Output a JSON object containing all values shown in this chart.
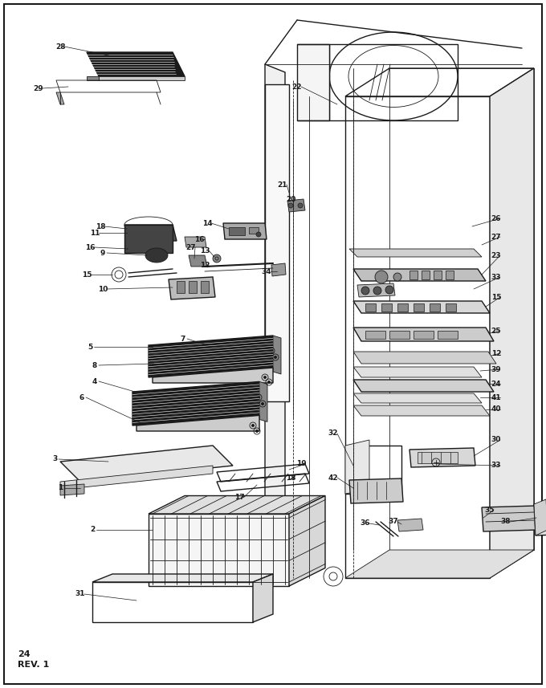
{
  "page_number": "24",
  "revision": "REV. 1",
  "bg_color": "#ffffff",
  "line_color": "#1a1a1a",
  "fig_width": 6.8,
  "fig_height": 8.57,
  "dpi": 100
}
